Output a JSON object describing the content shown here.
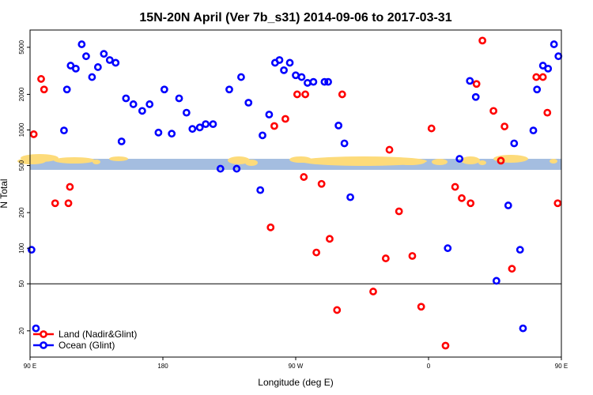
{
  "chart_data": {
    "type": "scatter",
    "title": "15N-20N April (Ver 7b_s31)   2014-09-06 to 2017-03-31",
    "xlabel": "Longitude (deg E)",
    "ylabel": "N Total",
    "xlim": [
      90,
      450
    ],
    "ylim_log": [
      12,
      7000
    ],
    "y_scale": "log",
    "x_ticks": [
      {
        "value": 90,
        "label": "90 E"
      },
      {
        "value": 180,
        "label": "180"
      },
      {
        "value": 270,
        "label": "90 W"
      },
      {
        "value": 360,
        "label": "0"
      },
      {
        "value": 450,
        "label": "90 E"
      },
      {
        "value": 540,
        "label": "180"
      }
    ],
    "y_ticks": [
      {
        "value": 20,
        "label": "20"
      },
      {
        "value": 50,
        "label": "50"
      },
      {
        "value": 100,
        "label": "100"
      },
      {
        "value": 200,
        "label": "200"
      },
      {
        "value": 500,
        "label": "500"
      },
      {
        "value": 1000,
        "label": "1000"
      },
      {
        "value": 2000,
        "label": "2000"
      },
      {
        "value": 5000,
        "label": "5000"
      }
    ],
    "reference_line_y": 50,
    "map_strip": {
      "y_low": 460,
      "y_high": 570,
      "ocean_color": "#a4bde0",
      "land_color": "#fddb7a"
    },
    "legend": {
      "position": "bottom-left"
    },
    "series": [
      {
        "name": "Land (Nadir&Glint)",
        "color": "#ff0000",
        "points": [
          [
            92.5,
            920
          ],
          [
            97.5,
            2700
          ],
          [
            99.5,
            2200
          ],
          [
            107,
            240
          ],
          [
            116,
            240
          ],
          [
            117,
            330
          ],
          [
            253,
            150
          ],
          [
            255.5,
            1080
          ],
          [
            263,
            1240
          ],
          [
            271,
            2000
          ],
          [
            275.5,
            400
          ],
          [
            276.5,
            2000
          ],
          [
            284,
            92
          ],
          [
            287.5,
            350
          ],
          [
            293,
            120
          ],
          [
            298,
            30
          ],
          [
            301.5,
            2000
          ],
          [
            322.5,
            43
          ],
          [
            331,
            82
          ],
          [
            333.5,
            680
          ],
          [
            340,
            205
          ],
          [
            349,
            86
          ],
          [
            355,
            32
          ],
          [
            362,
            1030
          ],
          [
            371.5,
            15
          ],
          [
            378,
            330
          ],
          [
            382.5,
            265
          ],
          [
            388.5,
            240
          ],
          [
            392.5,
            2450
          ],
          [
            396.5,
            5700
          ],
          [
            404,
            1450
          ],
          [
            409,
            550
          ],
          [
            411.5,
            1070
          ],
          [
            416.5,
            67
          ],
          [
            433,
            2800
          ],
          [
            437.5,
            2800
          ],
          [
            440.5,
            1400
          ],
          [
            447.5,
            240
          ],
          [
            460.5,
            920
          ],
          [
            464,
            2700
          ],
          [
            468,
            2200
          ],
          [
            475.5,
            240
          ],
          [
            485,
            240
          ],
          [
            486,
            330
          ]
        ]
      },
      {
        "name": "Ocean (Glint)",
        "color": "#0000ff",
        "points": [
          [
            91,
            97
          ],
          [
            94,
            21
          ],
          [
            113,
            990
          ],
          [
            115,
            2200
          ],
          [
            117.5,
            3500
          ],
          [
            121,
            3300
          ],
          [
            125,
            5300
          ],
          [
            128,
            4200
          ],
          [
            132,
            2800
          ],
          [
            136,
            3400
          ],
          [
            140,
            4400
          ],
          [
            144,
            3900
          ],
          [
            148,
            3700
          ],
          [
            152,
            800
          ],
          [
            155,
            1850
          ],
          [
            160,
            1650
          ],
          [
            166,
            1450
          ],
          [
            171,
            1650
          ],
          [
            177,
            950
          ],
          [
            181,
            2200
          ],
          [
            186,
            930
          ],
          [
            191,
            1850
          ],
          [
            196,
            1400
          ],
          [
            200,
            1020
          ],
          [
            205,
            1050
          ],
          [
            209,
            1120
          ],
          [
            214,
            1120
          ],
          [
            219,
            470
          ],
          [
            225,
            2200
          ],
          [
            230,
            470
          ],
          [
            233,
            2800
          ],
          [
            238,
            1700
          ],
          [
            246,
            310
          ],
          [
            247.5,
            900
          ],
          [
            252,
            1350
          ],
          [
            256,
            3700
          ],
          [
            259,
            3900
          ],
          [
            262,
            3200
          ],
          [
            266,
            3700
          ],
          [
            270,
            2900
          ],
          [
            274,
            2800
          ],
          [
            278,
            2500
          ],
          [
            282,
            2550
          ],
          [
            289.5,
            2550
          ],
          [
            292,
            2550
          ],
          [
            299,
            1090
          ],
          [
            303,
            770
          ],
          [
            307,
            270
          ],
          [
            373,
            100
          ],
          [
            381,
            570
          ],
          [
            388,
            2600
          ],
          [
            392,
            1900
          ],
          [
            406,
            53
          ],
          [
            414,
            230
          ],
          [
            418,
            770
          ],
          [
            422,
            97
          ],
          [
            424,
            21
          ],
          [
            431,
            990
          ],
          [
            433.5,
            2200
          ],
          [
            437.5,
            3500
          ],
          [
            441,
            3300
          ],
          [
            445,
            5300
          ],
          [
            448,
            4200
          ]
        ]
      }
    ]
  }
}
